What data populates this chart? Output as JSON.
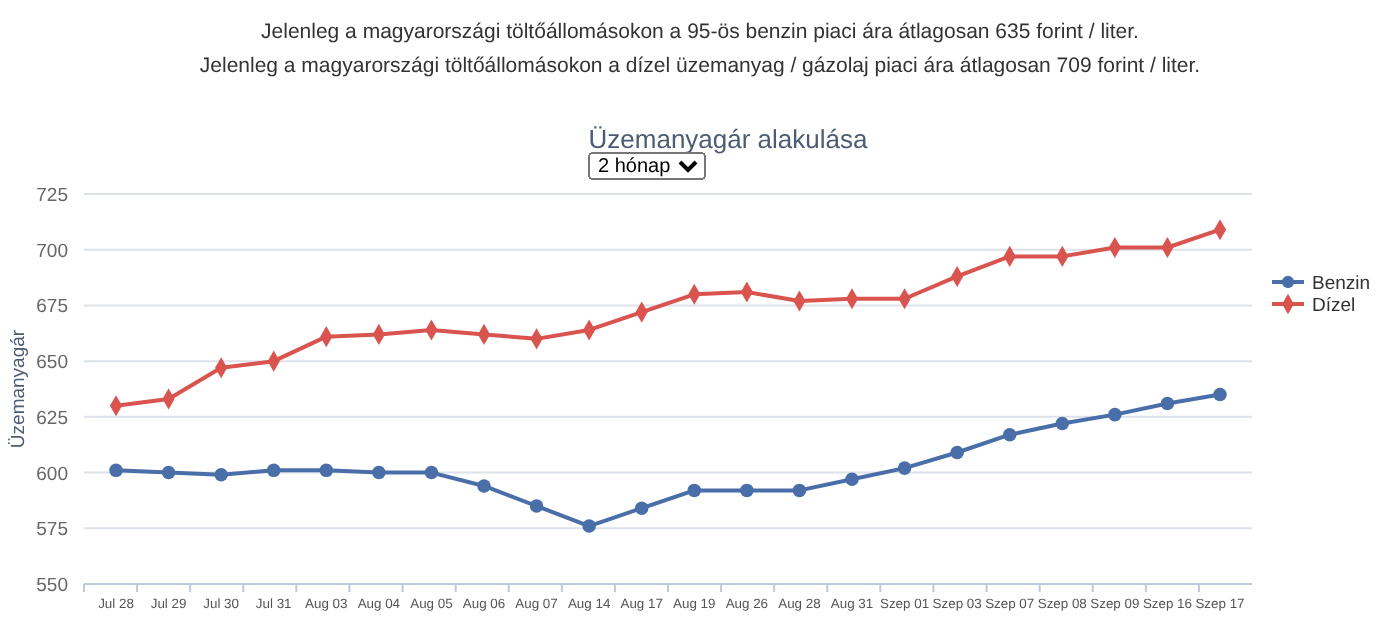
{
  "chart_data": {
    "type": "line",
    "title": "Üzemanyagár alakulása",
    "ylabel": "Üzemanyagár",
    "annotations": [
      "Jelenleg a magyarországi töltőállomásokon a 95-ös benzin piaci ára átlagosan 635 forint / liter.",
      "Jelenleg a magyarországi töltőállomásokon a dízel üzemanyag / gázolaj piaci ára átlagosan 709 forint / liter.",
      "2 hónap"
    ],
    "categories": [
      "Jul 28",
      "Jul 29",
      "Jul 30",
      "Jul 31",
      "Aug 03",
      "Aug 04",
      "Aug 05",
      "Aug 06",
      "Aug 07",
      "Aug 14",
      "Aug 17",
      "Aug 19",
      "Aug 26",
      "Aug 28",
      "Aug 31",
      "Szep 01",
      "Szep 03",
      "Szep 07",
      "Szep 08",
      "Szep 09",
      "Szep 16",
      "Szep 17"
    ],
    "series": [
      {
        "name": "Benzin",
        "color": "#4a6ea8",
        "marker": "circle",
        "values": [
          601,
          600,
          599,
          601,
          601,
          600,
          600,
          594,
          585,
          576,
          584,
          592,
          592,
          592,
          597,
          602,
          609,
          617,
          622,
          626,
          631,
          635
        ]
      },
      {
        "name": "Dízel",
        "color": "#d9534f",
        "marker": "diamond",
        "values": [
          630,
          633,
          647,
          650,
          661,
          662,
          664,
          662,
          660,
          664,
          672,
          680,
          681,
          677,
          678,
          678,
          688,
          697,
          697,
          701,
          701,
          709
        ]
      }
    ],
    "ylim": [
      550,
      725
    ],
    "yticks": [
      550,
      575,
      600,
      625,
      650,
      675,
      700,
      725
    ],
    "grid": "y",
    "legend": "right"
  }
}
